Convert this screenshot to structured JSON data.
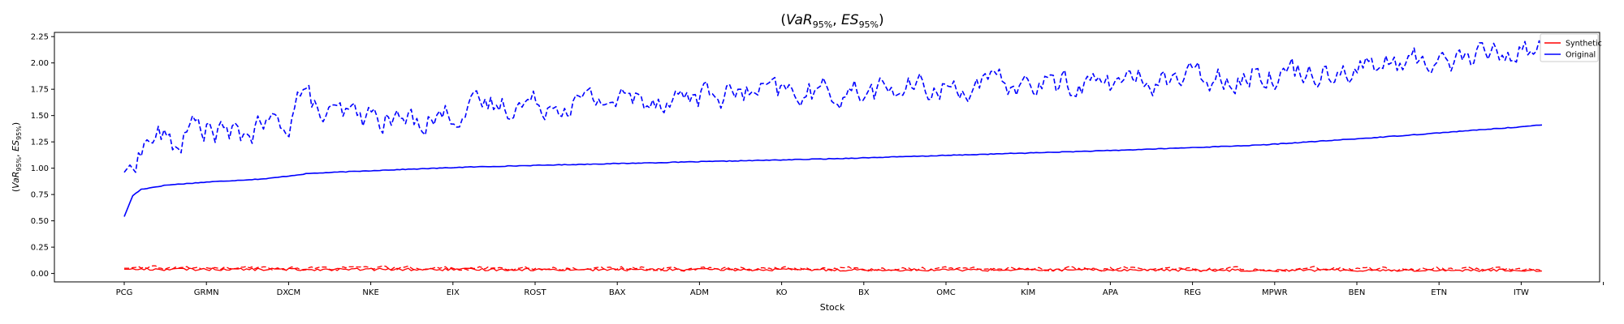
{
  "chart_data": {
    "type": "line",
    "title": "(VaR95%, ES95%)",
    "xlabel": "Stock",
    "ylabel": "(VaR95%, ES95%)",
    "ylim": [
      -0.08,
      2.29
    ],
    "y_ticks": [
      "0.00",
      "0.25",
      "0.50",
      "0.75",
      "1.00",
      "1.25",
      "1.50",
      "1.75",
      "2.00",
      "2.25"
    ],
    "categories": [
      "PCG",
      "GRMN",
      "DXCM",
      "NKE",
      "EIX",
      "ROST",
      "BAX",
      "ADM",
      "KO",
      "BX",
      "OMC",
      "KIM",
      "APA",
      "REG",
      "MPWR",
      "BEN",
      "ETN",
      "ITW"
    ],
    "n_points": 500,
    "grid": false,
    "legend_position": "top-right",
    "legend": [
      {
        "name": "Synthetic",
        "color": "#ff0000"
      },
      {
        "name": "Original",
        "color": "#0000ff"
      }
    ],
    "series": [
      {
        "group": "Original",
        "measure": "VaR",
        "color": "#0000ff",
        "style": "solid",
        "points": [
          [
            0,
            0.54
          ],
          [
            3,
            0.74
          ],
          [
            6,
            0.8
          ],
          [
            15,
            0.84
          ],
          [
            30,
            0.87
          ],
          [
            50,
            0.9
          ],
          [
            65,
            0.95
          ],
          [
            90,
            0.98
          ],
          [
            120,
            1.01
          ],
          [
            150,
            1.03
          ],
          [
            200,
            1.06
          ],
          [
            250,
            1.09
          ],
          [
            300,
            1.13
          ],
          [
            350,
            1.17
          ],
          [
            400,
            1.22
          ],
          [
            440,
            1.29
          ],
          [
            470,
            1.35
          ],
          [
            490,
            1.39
          ],
          [
            499,
            1.41
          ]
        ]
      },
      {
        "group": "Original",
        "measure": "ES",
        "color": "#0000ff",
        "style": "dashed",
        "points": [
          [
            0,
            0.96
          ],
          [
            4,
            1.1
          ],
          [
            8,
            1.25
          ],
          [
            12,
            1.32
          ],
          [
            18,
            1.2
          ],
          [
            25,
            1.42
          ],
          [
            32,
            1.35
          ],
          [
            40,
            1.3
          ],
          [
            50,
            1.4
          ],
          [
            58,
            1.45
          ],
          [
            62,
            1.75
          ],
          [
            70,
            1.48
          ],
          [
            80,
            1.5
          ],
          [
            100,
            1.45
          ],
          [
            130,
            1.6
          ],
          [
            170,
            1.65
          ],
          [
            210,
            1.7
          ],
          [
            250,
            1.72
          ],
          [
            300,
            1.78
          ],
          [
            350,
            1.82
          ],
          [
            400,
            1.9
          ],
          [
            440,
            1.97
          ],
          [
            470,
            2.05
          ],
          [
            499,
            2.15
          ]
        ]
      },
      {
        "group": "Synthetic",
        "measure": "VaR",
        "color": "#ff0000",
        "style": "solid",
        "points": [
          [
            0,
            0.04
          ],
          [
            499,
            0.03
          ]
        ]
      },
      {
        "group": "Synthetic",
        "measure": "ES",
        "color": "#ff0000",
        "style": "dashed",
        "points": [
          [
            0,
            0.05
          ],
          [
            499,
            0.04
          ]
        ]
      }
    ]
  }
}
